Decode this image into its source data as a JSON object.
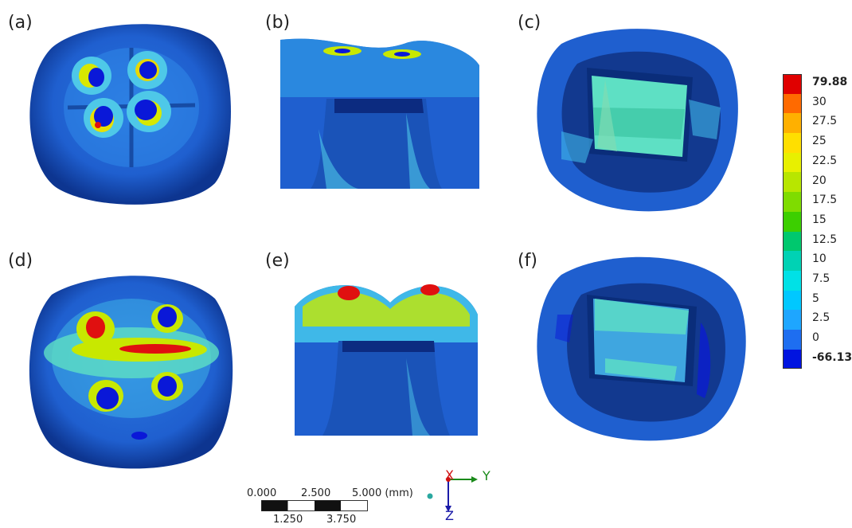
{
  "panels": [
    {
      "label": "(a)"
    },
    {
      "label": "(b)"
    },
    {
      "label": "(c)"
    },
    {
      "label": "(d)"
    },
    {
      "label": "(e)"
    },
    {
      "label": "(f)"
    }
  ],
  "legend": {
    "values": [
      "79.88",
      "30",
      "27.5",
      "25",
      "22.5",
      "20",
      "17.5",
      "15",
      "12.5",
      "10",
      "7.5",
      "5",
      "2.5",
      "0",
      "-66.13"
    ],
    "colors": [
      "#e00000",
      "#ff6a00",
      "#ffb000",
      "#ffdf00",
      "#e8f000",
      "#b8e600",
      "#7fdc00",
      "#3ccf00",
      "#00c86e",
      "#00d2b4",
      "#00e1e6",
      "#00c8ff",
      "#1ea6ff",
      "#1e6ef0",
      "#0014e0"
    ]
  },
  "scale_bar": {
    "top_labels": [
      "0.000",
      "2.500",
      "5.000 (mm)"
    ],
    "bottom_labels": [
      "1.250",
      "3.750"
    ]
  },
  "axes": {
    "x": "X",
    "y": "Y",
    "z": "Z"
  },
  "colors": {
    "base": "#1f5fcf",
    "dark": "#0a2d7a",
    "light": "#3fb8e8",
    "mint": "#5ee0c4",
    "hot": "#e8141a"
  }
}
